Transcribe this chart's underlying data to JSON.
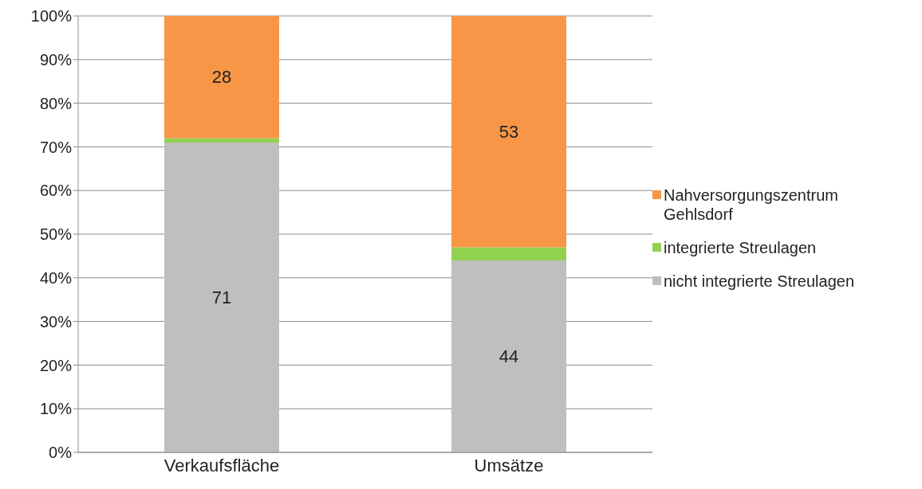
{
  "chart_data": {
    "type": "bar",
    "stacked": true,
    "categories": [
      "Verkaufsfläche",
      "Umsätze"
    ],
    "series": [
      {
        "name": "nicht integrierte Streulagen",
        "color": "#bfbfbf",
        "values": [
          71,
          44
        ],
        "value_labels": [
          "71",
          "44"
        ]
      },
      {
        "name": "integrierte Streulagen",
        "color": "#92d050",
        "values": [
          1,
          3
        ],
        "value_labels": [
          null,
          null
        ]
      },
      {
        "name": "Nahversorgungszentrum Gehlsdorf",
        "color": "#f79646",
        "values": [
          28,
          53
        ],
        "value_labels": [
          "28",
          "53"
        ]
      }
    ],
    "ylim": [
      0,
      100
    ],
    "yticks": [
      {
        "value": 0,
        "label": "0%"
      },
      {
        "value": 10,
        "label": "10%"
      },
      {
        "value": 20,
        "label": "20%"
      },
      {
        "value": 30,
        "label": "30%"
      },
      {
        "value": 40,
        "label": "40%"
      },
      {
        "value": 50,
        "label": "50%"
      },
      {
        "value": 60,
        "label": "60%"
      },
      {
        "value": 70,
        "label": "70%"
      },
      {
        "value": 80,
        "label": "80%"
      },
      {
        "value": 90,
        "label": "90%"
      },
      {
        "value": 100,
        "label": "100%"
      }
    ],
    "grid": "y",
    "legend": "right"
  }
}
